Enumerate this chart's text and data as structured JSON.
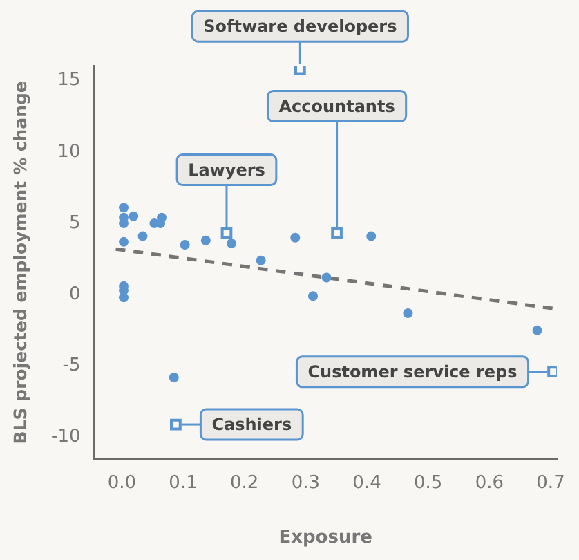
{
  "chart_data": {
    "type": "scatter",
    "xlabel": "Exposure",
    "ylabel": "BLS projected employment % change",
    "xlim": [
      -0.045,
      0.71
    ],
    "ylim": [
      -11.5,
      16
    ],
    "xticks": [
      {
        "value": 0,
        "label": "0.0"
      },
      0.1,
      0.2,
      0.3,
      0.4,
      0.5,
      0.6,
      0.7
    ],
    "yticks": [
      -10,
      -5,
      0,
      5,
      10,
      15
    ],
    "grid": false,
    "legend": false,
    "series": [
      {
        "marker": "circle",
        "color": "#5b95d0",
        "x": [
          0.003,
          0.003,
          0.003,
          0.019,
          0.053,
          0.063,
          0.065,
          0.034,
          0.003,
          0.103,
          0.137,
          0.179,
          0.227,
          0.283,
          0.407,
          0.334,
          0.312,
          0.467,
          0.678,
          0.003,
          0.003,
          0.003,
          0.085
        ],
        "values": [
          6.1,
          5.4,
          5.0,
          5.5,
          5.0,
          5.0,
          5.4,
          4.1,
          3.7,
          3.5,
          3.8,
          3.6,
          2.4,
          4.0,
          4.1,
          1.2,
          -0.1,
          -1.3,
          -2.5,
          0.6,
          0.3,
          -0.2,
          -5.8
        ]
      },
      {
        "marker": "square",
        "color": "#5b95d0",
        "x": [
          0.291,
          0.351,
          0.171,
          0.704,
          0.088
        ],
        "values": [
          15.8,
          4.3,
          4.3,
          -5.4,
          -9.1
        ]
      },
      {
        "type": "line",
        "marker": "none",
        "line_style": "dashed",
        "color": "#757575",
        "x": [
          -0.01,
          0.71
        ],
        "values": [
          3.2,
          -1.0
        ]
      }
    ],
    "annotations": [
      {
        "text": "Software developers",
        "x": 0.291,
        "y": 15.8
      },
      {
        "text": "Accountants",
        "x": 0.351,
        "y": 4.3
      },
      {
        "text": "Lawyers",
        "x": 0.171,
        "y": 4.3
      },
      {
        "text": "Customer service reps",
        "x": 0.704,
        "y": -5.4
      },
      {
        "text": "Cashiers",
        "x": 0.088,
        "y": -9.1
      }
    ]
  }
}
